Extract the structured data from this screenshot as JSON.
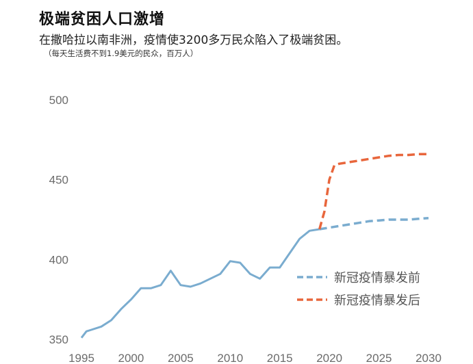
{
  "header": {
    "title": "极端贫困人口激增",
    "subtitle": "在撒哈拉以南非洲，疫情使3200多万民众陷入了极端贫困。",
    "note": "（每天生活费不到1.9美元的民众，百万人）"
  },
  "colors": {
    "pre": "#7aaccf",
    "post": "#e8663c",
    "tick_text": "#6b6b6b"
  },
  "chart_data": {
    "type": "line",
    "title": "极端贫困人口激增",
    "xlim": [
      1995,
      2030
    ],
    "ylim": [
      350,
      500
    ],
    "x_ticks": [
      1995,
      2000,
      2005,
      2010,
      2015,
      2020,
      2025,
      2030
    ],
    "y_ticks": [
      350,
      400,
      450,
      500
    ],
    "grid": false,
    "legend_position": "bottom-right",
    "series": [
      {
        "name": "新冠疫情暴发前",
        "color": "#7aaccf",
        "segments": [
          {
            "style": "solid",
            "points": [
              [
                1995,
                351
              ],
              [
                1995.5,
                355
              ],
              [
                1996,
                356
              ],
              [
                1997,
                358
              ],
              [
                1998,
                362
              ],
              [
                1999,
                369
              ],
              [
                2000,
                375
              ],
              [
                2001,
                382
              ],
              [
                2002,
                382
              ],
              [
                2003,
                384
              ],
              [
                2004,
                393
              ],
              [
                2005,
                384
              ],
              [
                2006,
                383
              ],
              [
                2007,
                385
              ],
              [
                2008,
                388
              ],
              [
                2009,
                391
              ],
              [
                2010,
                399
              ],
              [
                2011,
                398
              ],
              [
                2012,
                391
              ],
              [
                2013,
                388
              ],
              [
                2014,
                395
              ],
              [
                2015,
                395
              ],
              [
                2016,
                404
              ],
              [
                2017,
                413
              ],
              [
                2018,
                418
              ],
              [
                2019,
                419
              ]
            ]
          },
          {
            "style": "dashed",
            "points": [
              [
                2019,
                419
              ],
              [
                2020,
                420
              ],
              [
                2021,
                421
              ],
              [
                2022,
                422
              ],
              [
                2023,
                423
              ],
              [
                2024,
                424
              ],
              [
                2025,
                424.5
              ],
              [
                2026,
                425
              ],
              [
                2027,
                425
              ],
              [
                2028,
                425
              ],
              [
                2029,
                425.5
              ],
              [
                2030,
                426
              ]
            ]
          }
        ]
      },
      {
        "name": "新冠疫情暴发后",
        "color": "#e8663c",
        "segments": [
          {
            "style": "dashed",
            "points": [
              [
                2019,
                419
              ],
              [
                2019.5,
                430
              ],
              [
                2020,
                450
              ],
              [
                2020.5,
                459
              ],
              [
                2021,
                460
              ],
              [
                2022,
                461
              ],
              [
                2023,
                462
              ],
              [
                2024,
                463
              ],
              [
                2025,
                464
              ],
              [
                2026,
                465
              ],
              [
                2027,
                465.5
              ],
              [
                2028,
                465.5
              ],
              [
                2029,
                466
              ],
              [
                2030,
                466
              ]
            ]
          }
        ]
      }
    ]
  }
}
